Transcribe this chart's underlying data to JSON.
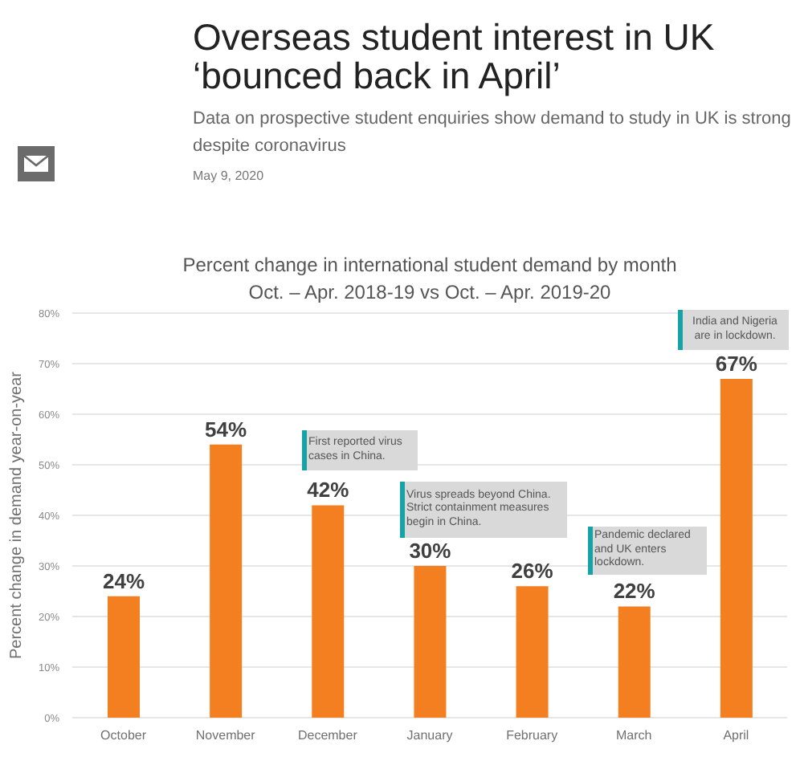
{
  "chart_data": {
    "type": "bar",
    "title": "Percent change in international student demand by month",
    "subtitle": "Oct. – Apr. 2018-19 vs Oct. – Apr. 2019-20",
    "ylabel": "Percent change in demand year-on-year",
    "categories": [
      "October",
      "November",
      "December",
      "January",
      "February",
      "March",
      "April"
    ],
    "values": [
      24,
      54,
      42,
      30,
      26,
      22,
      67
    ],
    "value_labels": [
      "24%",
      "54%",
      "42%",
      "30%",
      "26%",
      "22%",
      "67%"
    ],
    "color": "#f47f20",
    "ylim": [
      0,
      80
    ],
    "yticks": [
      {
        "value": 0,
        "label": "0%"
      },
      {
        "value": 10,
        "label": "10%"
      },
      {
        "value": 20,
        "label": "20%"
      },
      {
        "value": 30,
        "label": "30%"
      },
      {
        "value": 40,
        "label": "40%"
      },
      {
        "value": 50,
        "label": "50%"
      },
      {
        "value": 60,
        "label": "60%"
      },
      {
        "value": 70,
        "label": "70%"
      },
      {
        "value": 80,
        "label": "80%"
      }
    ],
    "grid": "y",
    "annotations": [
      "Overseas student interest in UK ‘bounced back in April’",
      "Data on prospective student enquiries show demand to study in UK is strong despite coronavirus",
      "May 9, 2020",
      "First reported virus cases in China.",
      "Virus spreads beyond China. Strict containment measures begin in China.",
      "Pandemic declared and UK enters lockdown.",
      "India and Nigeria are in lockdown."
    ]
  }
}
